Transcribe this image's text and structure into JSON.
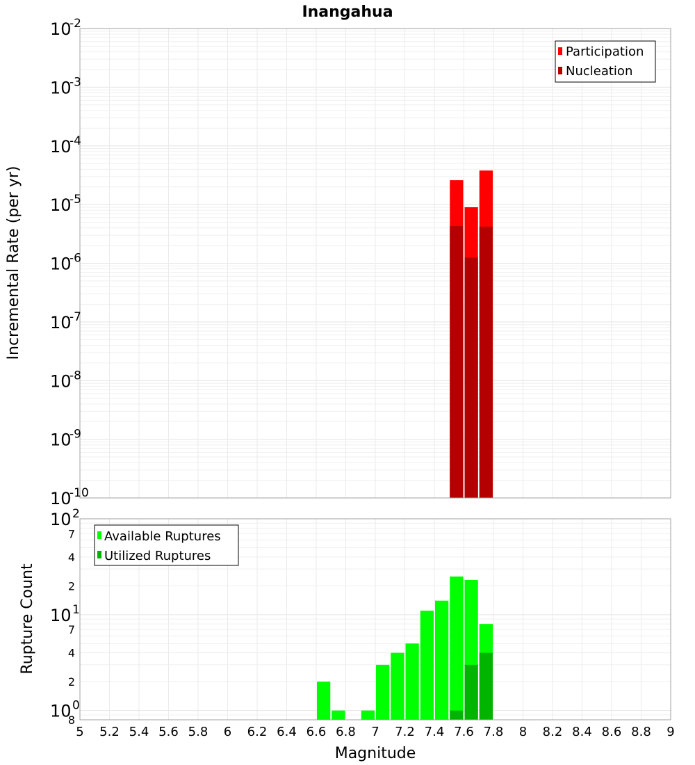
{
  "chart_data": [
    {
      "type": "bar",
      "title": "Inangahua",
      "ylabel": "Incremental Rate (per yr)",
      "xlabel": "",
      "yscale": "log",
      "ylim": [
        1e-10,
        0.01
      ],
      "xlim": [
        5,
        9
      ],
      "y_ticks": [
        {
          "base": "10",
          "exp": "-2"
        },
        {
          "base": "10",
          "exp": "-3"
        },
        {
          "base": "10",
          "exp": "-4"
        },
        {
          "base": "10",
          "exp": "-5"
        },
        {
          "base": "10",
          "exp": "-6"
        },
        {
          "base": "10",
          "exp": "-7"
        },
        {
          "base": "10",
          "exp": "-8"
        },
        {
          "base": "10",
          "exp": "-9"
        },
        {
          "base": "10",
          "exp": "-10"
        }
      ],
      "bar_width": 0.1,
      "legend_position": "top-right",
      "series": [
        {
          "name": "Participation",
          "color": "#ff0000",
          "x": [
            7.55,
            7.65,
            7.75
          ],
          "values": [
            2.6e-05,
            9e-06,
            3.8e-05
          ]
        },
        {
          "name": "Nucleation",
          "color": "#b40000",
          "x": [
            7.55,
            7.65,
            7.75
          ],
          "values": [
            4.3e-06,
            1.25e-06,
            4.2e-06
          ]
        }
      ]
    },
    {
      "type": "bar",
      "title": "",
      "ylabel": "Rupture Count",
      "xlabel": "Magnitude",
      "yscale": "log",
      "ylim": [
        0.8,
        100
      ],
      "xlim": [
        5,
        9
      ],
      "x_ticks": [
        "5",
        "5.2",
        "5.4",
        "5.6",
        "5.8",
        "6",
        "6.2",
        "6.4",
        "6.6",
        "6.8",
        "7",
        "7.2",
        "7.4",
        "7.6",
        "7.8",
        "8",
        "8.2",
        "8.4",
        "8.6",
        "8.8",
        "9"
      ],
      "y_major_ticks": [
        {
          "value": 100,
          "base": "10",
          "exp": "2"
        },
        {
          "value": 10,
          "base": "10",
          "exp": "1"
        },
        {
          "value": 1,
          "base": "10",
          "exp": "0"
        }
      ],
      "y_minor_labels": [
        {
          "value": 70,
          "label": "7"
        },
        {
          "value": 40,
          "label": "4"
        },
        {
          "value": 20,
          "label": "2"
        },
        {
          "value": 7,
          "label": "7"
        },
        {
          "value": 4,
          "label": "4"
        },
        {
          "value": 2,
          "label": "2"
        },
        {
          "value": 0.8,
          "label": "8"
        }
      ],
      "bar_width": 0.1,
      "legend_position": "top-left",
      "series": [
        {
          "name": "Available Ruptures",
          "color": "#00ff00",
          "x": [
            6.65,
            6.75,
            6.95,
            7.05,
            7.15,
            7.25,
            7.35,
            7.45,
            7.55,
            7.65,
            7.75
          ],
          "values": [
            2,
            1,
            1,
            3,
            4,
            5,
            11,
            14,
            25,
            23,
            8
          ]
        },
        {
          "name": "Utilized Ruptures",
          "color": "#00b400",
          "x": [
            7.55,
            7.65,
            7.75
          ],
          "values": [
            1,
            3,
            4
          ]
        }
      ]
    }
  ]
}
